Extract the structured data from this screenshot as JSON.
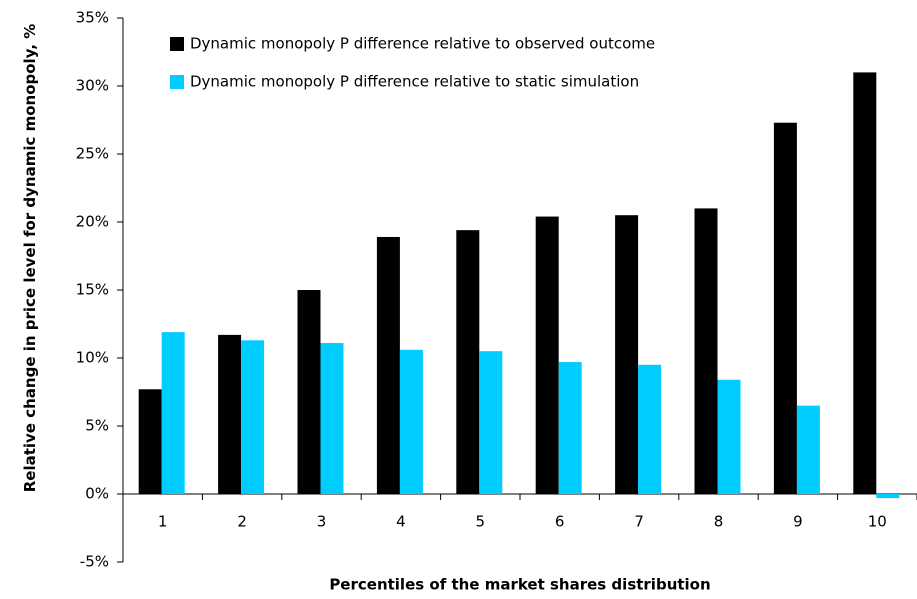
{
  "chart_data": {
    "type": "bar",
    "x_label": "Percentiles of the market shares distribution",
    "y_label": "Relative change in price level for dynamic monopoly, %",
    "categories": [
      "1",
      "2",
      "3",
      "4",
      "5",
      "6",
      "7",
      "8",
      "9",
      "10"
    ],
    "series": [
      {
        "name": "Dynamic monopoly P difference relative to observed outcome",
        "color": "#000000",
        "values": [
          7.7,
          11.7,
          15.0,
          18.9,
          19.4,
          20.4,
          20.5,
          21.0,
          27.3,
          31.0
        ]
      },
      {
        "name": "Dynamic monopoly P difference relative to static simulation",
        "color": "#00ccff",
        "values": [
          11.9,
          11.3,
          11.1,
          10.6,
          10.5,
          9.7,
          9.5,
          8.4,
          6.5,
          -0.3
        ]
      }
    ],
    "ylim": [
      -5,
      35
    ],
    "yticks": [
      {
        "value": -5,
        "label": "-5%"
      },
      {
        "value": 0,
        "label": "0%"
      },
      {
        "value": 5,
        "label": "5%"
      },
      {
        "value": 10,
        "label": "10%"
      },
      {
        "value": 15,
        "label": "15%"
      },
      {
        "value": 20,
        "label": "20%"
      },
      {
        "value": 25,
        "label": "25%"
      },
      {
        "value": 30,
        "label": "30%"
      },
      {
        "value": 35,
        "label": "35%"
      }
    ],
    "legend": "top-left"
  }
}
